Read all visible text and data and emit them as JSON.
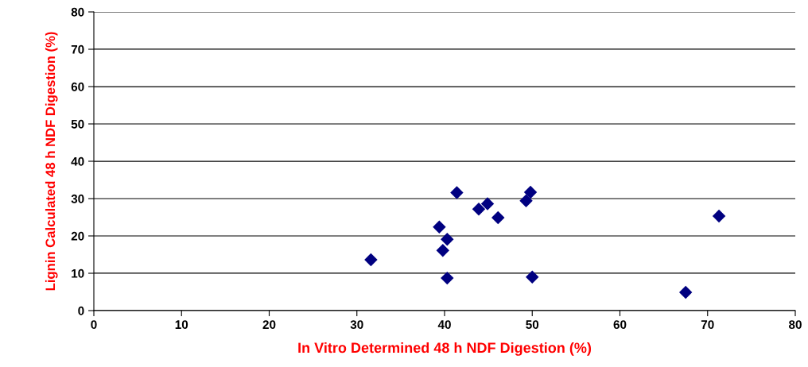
{
  "chart_data": {
    "type": "scatter",
    "xlabel": "In Vitro Determined 48 h NDF Digestion (%)",
    "ylabel": "Lignin Calculated 48 h NDF Digestion (%)",
    "x": [
      31.6,
      39.4,
      40.3,
      39.8,
      40.3,
      41.4,
      43.9,
      44.5,
      44.9,
      46.1,
      49.3,
      49.8,
      50.0,
      71.3,
      67.5
    ],
    "series": [
      {
        "color": "#000080",
        "values": [
          13.6,
          22.4,
          19.1,
          16.1,
          8.7,
          31.6,
          27.2,
          null,
          28.6,
          24.9,
          29.4,
          31.7,
          9.0,
          25.3,
          4.9
        ]
      }
    ],
    "marker": "diamond",
    "xlim": [
      0,
      80
    ],
    "ylim": [
      0,
      80
    ],
    "xticks": [
      0,
      10,
      20,
      30,
      40,
      50,
      60,
      70,
      80
    ],
    "yticks": [
      0,
      10,
      20,
      30,
      40,
      50,
      60,
      70,
      80
    ],
    "grid": "y"
  }
}
